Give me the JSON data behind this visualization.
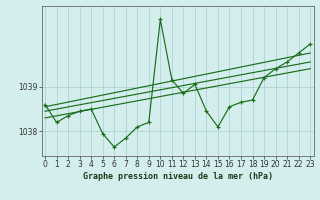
{
  "x_values": [
    0,
    1,
    2,
    3,
    4,
    5,
    6,
    7,
    8,
    9,
    10,
    11,
    12,
    13,
    14,
    15,
    16,
    17,
    18,
    19,
    20,
    21,
    22,
    23
  ],
  "pressure": [
    1038.6,
    1038.2,
    1038.35,
    1038.45,
    1038.5,
    1037.95,
    1037.65,
    1037.85,
    1038.1,
    1038.2,
    1040.5,
    1039.15,
    1038.85,
    1039.05,
    1038.45,
    1038.1,
    1038.55,
    1038.65,
    1038.7,
    1039.2,
    1039.4,
    1039.55,
    1039.75,
    1039.95
  ],
  "trend_lines": [
    [
      [
        0,
        1038.45
      ],
      [
        23,
        1039.55
      ]
    ],
    [
      [
        0,
        1038.55
      ],
      [
        23,
        1039.75
      ]
    ],
    [
      [
        0,
        1038.3
      ],
      [
        23,
        1039.4
      ]
    ]
  ],
  "line_color": "#1a6e1a",
  "bg_color": "#d4eeee",
  "grid_color": "#aacece",
  "ylabel_values": [
    1038,
    1039
  ],
  "ylim": [
    1037.45,
    1040.8
  ],
  "xlim": [
    -0.3,
    23.3
  ],
  "xlabel": "Graphe pression niveau de la mer (hPa)",
  "tick_fontsize": 5.5,
  "label_fontsize": 6.0
}
